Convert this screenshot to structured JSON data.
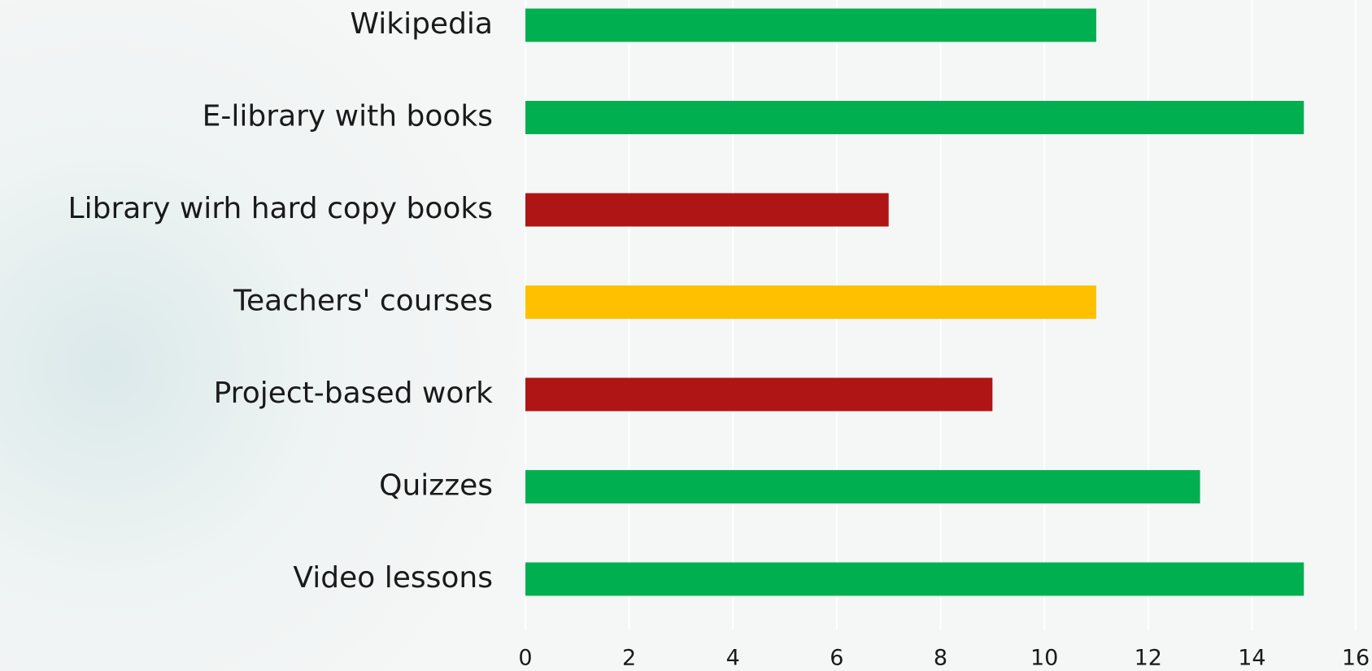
{
  "chart_data": {
    "type": "barh",
    "categories": [
      "Wikipedia",
      "E-library with books",
      "Library wirh hard copy books",
      "Teachers' courses",
      "Project-based work",
      "Quizzes",
      "Video lessons"
    ],
    "values": [
      11,
      15,
      7,
      11,
      9,
      13,
      15
    ],
    "colors": [
      "#00b050",
      "#00b050",
      "#b01515",
      "#ffc000",
      "#b01515",
      "#00b050",
      "#00b050"
    ],
    "xlim": [
      0,
      16
    ],
    "xticks": [
      0,
      2,
      4,
      6,
      8,
      10,
      12,
      14,
      16
    ],
    "grid": true
  }
}
